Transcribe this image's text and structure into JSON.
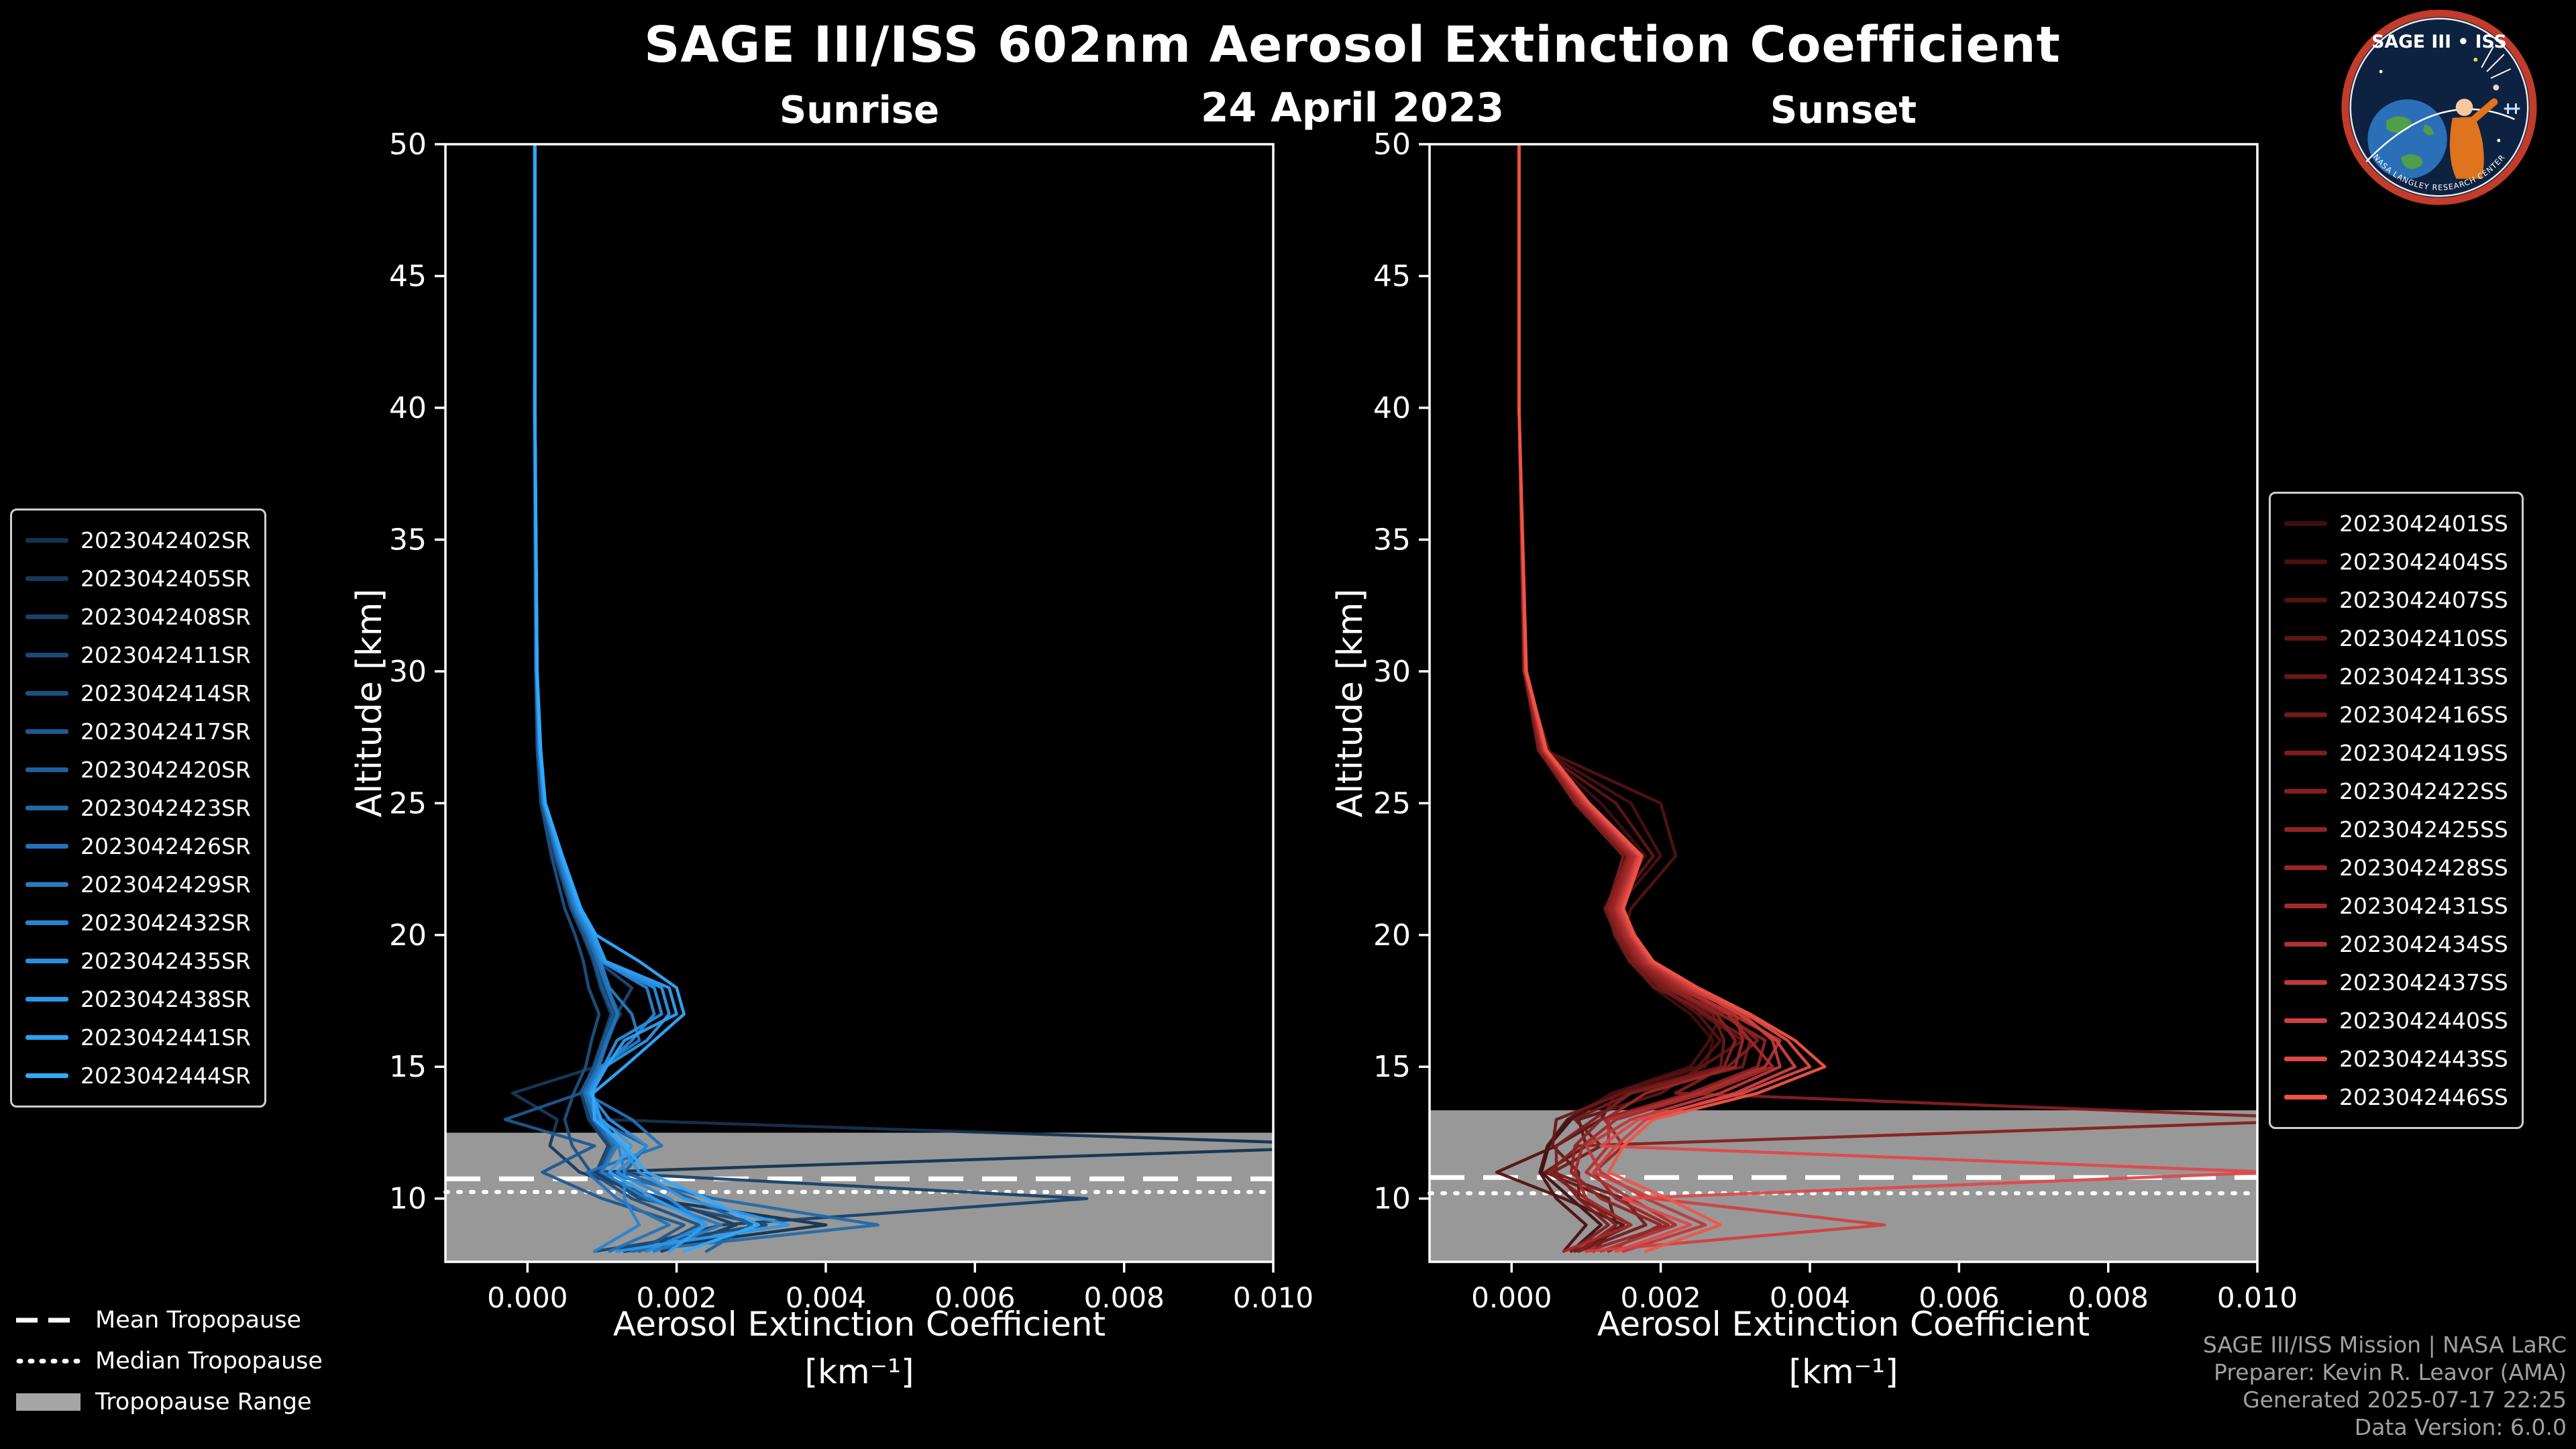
{
  "header": {
    "title": "SAGE III/ISS 602nm Aerosol Extinction Coefficient",
    "date": "24 April 2023"
  },
  "logo": {
    "title": "SAGE III • ISS",
    "subtitle": "NASA LANGLEY RESEARCH CENTER"
  },
  "tropopause_legend": {
    "mean": "Mean Tropopause",
    "median": "Median Tropopause",
    "range": "Tropopause Range"
  },
  "credits": {
    "lines": [
      "SAGE III/ISS Mission | NASA LaRC",
      "Preparer: Kevin R. Leavor (AMA)",
      "Generated 2025-07-17 22:25",
      "Data Version: 6.0.0"
    ]
  },
  "chart_data": [
    {
      "type": "line",
      "title": "Sunrise",
      "xlabel": "Aerosol Extinction Coefficient",
      "xlabel_units": "[km⁻¹]",
      "ylabel": "Altitude [km]",
      "xlim": [
        -0.0011,
        0.01
      ],
      "ylim": [
        7.6,
        50
      ],
      "xticks": [
        0.0,
        0.002,
        0.004,
        0.006,
        0.008,
        0.01
      ],
      "xtick_labels": [
        "0.000",
        "0.002",
        "0.004",
        "0.006",
        "0.008",
        "0.010"
      ],
      "yticks": [
        10,
        15,
        20,
        25,
        30,
        35,
        40,
        45,
        50
      ],
      "grid": false,
      "legend_position": "outside-left",
      "tropopause": {
        "mean": 10.75,
        "median": 10.25,
        "range_top": 12.5,
        "range_bottom": 7.6
      },
      "altitudes": [
        50,
        40,
        30,
        27,
        25,
        23,
        21,
        20,
        19,
        18,
        17,
        16,
        15,
        14,
        13,
        12,
        11,
        10,
        9,
        8
      ],
      "series": [
        {
          "name": "2023042402SR",
          "color": "#14334f",
          "values": [
            0.0001,
            0.0001,
            0.00012,
            0.00016,
            0.00022,
            0.0004,
            0.00065,
            0.0008,
            0.00095,
            0.00105,
            0.00125,
            0.001,
            0.0009,
            0.0007,
            0.001,
            0.0115,
            0.0009,
            0.0016,
            0.004,
            0.0013
          ]
        },
        {
          "name": "2023042405SR",
          "color": "#163a5c",
          "values": [
            0.0001,
            0.0001,
            0.00011,
            0.00014,
            0.0002,
            0.00038,
            0.0006,
            0.00078,
            0.00092,
            0.00102,
            0.00118,
            0.00104,
            0.00092,
            -0.0002,
            0.0004,
            0.0003,
            0.0007,
            0.0018,
            0.0028,
            0.0018
          ]
        },
        {
          "name": "2023042408SR",
          "color": "#184169",
          "values": [
            9e-05,
            0.0001,
            0.00011,
            0.00015,
            0.00019,
            0.00036,
            0.00058,
            0.00074,
            0.00088,
            0.00098,
            0.00112,
            0.001,
            0.00088,
            0.00072,
            0.00082,
            0.00108,
            0.00092,
            0.0075,
            0.0026,
            0.0012
          ]
        },
        {
          "name": "2023042411SR",
          "color": "#1a4976",
          "values": [
            0.0001,
            0.0001,
            0.00012,
            0.00015,
            0.00021,
            0.0004,
            0.00062,
            0.0008,
            0.00094,
            0.0014,
            0.0012,
            0.00106,
            0.00094,
            0.00076,
            0.00086,
            0.00112,
            0.00096,
            0.0015,
            0.0032,
            0.0009
          ]
        },
        {
          "name": "2023042414SR",
          "color": "#1c5183",
          "values": [
            0.0001,
            9e-05,
            0.00011,
            0.00013,
            0.00018,
            0.00032,
            0.0005,
            0.00064,
            0.00075,
            0.00082,
            0.00096,
            0.00086,
            0.00078,
            0.00062,
            0.0005,
            0.0006,
            0.00085,
            0.0014,
            0.0023,
            0.0016
          ]
        },
        {
          "name": "2023042417SR",
          "color": "#1e5990",
          "values": [
            0.0001,
            0.0001,
            0.00012,
            0.00015,
            0.0002,
            0.00038,
            0.0006,
            0.00076,
            0.0009,
            0.001,
            0.00115,
            0.00102,
            0.0009,
            0.00072,
            -0.0003,
            0.0009,
            0.0002,
            0.001,
            0.0021,
            0.0015
          ]
        },
        {
          "name": "2023042420SR",
          "color": "#20619d",
          "values": [
            0.0001,
            0.0001,
            0.00012,
            0.00016,
            0.00022,
            0.00042,
            0.00064,
            0.00082,
            0.00096,
            0.00108,
            0.00122,
            0.00108,
            0.00096,
            0.00078,
            0.00092,
            0.0016,
            0.0013,
            0.0022,
            0.003,
            0.0024
          ]
        },
        {
          "name": "2023042423SR",
          "color": "#226aaa",
          "values": [
            0.0001,
            0.0001,
            0.00012,
            0.00015,
            0.00021,
            0.0004,
            0.00062,
            0.0008,
            0.00094,
            0.00106,
            0.0012,
            0.00106,
            0.00094,
            0.00076,
            0.00088,
            0.00115,
            0.00098,
            0.0025,
            0.0047,
            0.0014
          ]
        },
        {
          "name": "2023042426SR",
          "color": "#2472b7",
          "values": [
            0.0001,
            0.0001,
            0.00012,
            0.00015,
            0.00021,
            0.0004,
            0.00063,
            0.00081,
            0.00095,
            0.00107,
            0.00121,
            0.00107,
            0.00095,
            0.00077,
            0.0014,
            0.0018,
            0.0008,
            0.0012,
            0.0019,
            0.0011
          ]
        },
        {
          "name": "2023042429SR",
          "color": "#267bc4",
          "values": [
            0.0001,
            0.0001,
            0.00012,
            0.00016,
            0.00022,
            0.00042,
            0.00065,
            0.00083,
            0.00098,
            0.0011,
            0.0014,
            0.0015,
            0.00098,
            0.0008,
            0.00092,
            0.0012,
            0.001,
            0.0016,
            0.0026,
            0.0017
          ]
        },
        {
          "name": "2023042432SR",
          "color": "#2884d1",
          "values": [
            0.0001,
            0.0001,
            0.00012,
            0.00016,
            0.00022,
            0.00043,
            0.00066,
            0.00084,
            0.00099,
            0.0016,
            0.0017,
            0.0014,
            0.001,
            0.00081,
            0.00094,
            0.00122,
            0.0013,
            0.0013,
            0.0015,
            0.0009
          ]
        },
        {
          "name": "2023042435SR",
          "color": "#2a8dde",
          "values": [
            0.0001,
            0.0001,
            0.00013,
            0.00017,
            0.00023,
            0.00044,
            0.00068,
            0.00086,
            0.00101,
            0.0017,
            0.0018,
            0.0012,
            0.00102,
            0.00083,
            0.0011,
            0.0016,
            0.0012,
            0.0019,
            0.0024,
            0.0016
          ]
        },
        {
          "name": "2023042438SR",
          "color": "#2c96e8",
          "values": [
            0.0001,
            0.0001,
            0.00013,
            0.00017,
            0.00023,
            0.00045,
            0.00069,
            0.00088,
            0.00103,
            0.0018,
            0.0019,
            0.0016,
            0.00104,
            0.00085,
            0.00097,
            0.00126,
            0.0015,
            0.0021,
            0.0035,
            0.0012
          ]
        },
        {
          "name": "2023042441SR",
          "color": "#2ea0f2",
          "values": [
            0.0001,
            0.0001,
            0.00013,
            0.00017,
            0.00024,
            0.00046,
            0.0007,
            0.0009,
            0.00105,
            0.0019,
            0.002,
            0.0013,
            0.00106,
            0.00086,
            0.00099,
            0.0014,
            0.0011,
            0.0017,
            0.0024,
            0.0019
          ]
        },
        {
          "name": "2023042444SR",
          "color": "#30aaff",
          "values": [
            0.0001,
            0.0001,
            0.00013,
            0.00018,
            0.00024,
            0.00047,
            0.00072,
            0.00092,
            0.0015,
            0.002,
            0.0021,
            0.0017,
            0.0013,
            0.00088,
            0.0009,
            0.0013,
            0.0016,
            0.0024,
            0.0031,
            0.0021
          ]
        }
      ]
    },
    {
      "type": "line",
      "title": "Sunset",
      "xlabel": "Aerosol Extinction Coefficient",
      "xlabel_units": "[km⁻¹]",
      "ylabel": "Altitude [km]",
      "xlim": [
        -0.0011,
        0.01
      ],
      "ylim": [
        7.6,
        50
      ],
      "xticks": [
        0.0,
        0.002,
        0.004,
        0.006,
        0.008,
        0.01
      ],
      "xtick_labels": [
        "0.000",
        "0.002",
        "0.004",
        "0.006",
        "0.008",
        "0.010"
      ],
      "yticks": [
        10,
        15,
        20,
        25,
        30,
        35,
        40,
        45,
        50
      ],
      "grid": false,
      "legend_position": "outside-right",
      "tropopause": {
        "mean": 10.8,
        "median": 10.2,
        "range_top": 13.35,
        "range_bottom": 7.6
      },
      "altitudes": [
        50,
        40,
        30,
        27,
        25,
        23,
        21,
        20,
        19,
        18,
        17,
        16,
        15,
        14,
        13,
        12,
        11,
        10,
        9,
        8
      ],
      "series": [
        {
          "name": "2023042401SS",
          "color": "#400d0d",
          "values": [
            0.0001,
            0.0001,
            0.00018,
            0.0004,
            0.0012,
            0.0018,
            0.0013,
            0.0014,
            0.0016,
            0.0019,
            0.0024,
            0.0027,
            0.0026,
            0.0014,
            0.0008,
            0.0005,
            0.0004,
            0.0008,
            0.0012,
            0.0008
          ]
        },
        {
          "name": "2023042404SS",
          "color": "#4a1010",
          "values": [
            0.0001,
            0.0001,
            0.00017,
            0.00042,
            0.0016,
            0.002,
            0.0014,
            0.00145,
            0.00165,
            0.00195,
            0.0028,
            0.00265,
            0.0024,
            0.00135,
            0.00075,
            0.00048,
            0.00038,
            0.0006,
            0.001,
            0.0007
          ]
        },
        {
          "name": "2023042407SS",
          "color": "#541212",
          "values": [
            0.0001,
            0.0001,
            0.00018,
            0.00045,
            0.002,
            0.0022,
            0.0016,
            0.0015,
            0.0017,
            0.002,
            0.0025,
            0.0028,
            0.0025,
            0.0014,
            0.0012,
            0.0006,
            -0.0002,
            0.0007,
            0.0015,
            0.0009
          ]
        },
        {
          "name": "2023042410SS",
          "color": "#5e1515",
          "values": [
            0.0001,
            0.0001,
            0.00017,
            0.00038,
            0.0014,
            0.0019,
            0.00135,
            0.00142,
            0.00162,
            0.0022,
            0.00255,
            0.0031,
            0.00255,
            0.002,
            0.0009,
            0.001,
            0.00045,
            0.0013,
            0.0014,
            0.0011
          ]
        },
        {
          "name": "2023042413SS",
          "color": "#681818",
          "values": [
            0.0001,
            0.0001,
            0.00016,
            0.0005,
            0.001,
            0.0017,
            0.0013,
            0.00138,
            0.00158,
            0.00192,
            0.0027,
            0.00285,
            0.0028,
            0.0015,
            0.0006,
            0.00055,
            0.0009,
            0.0009,
            0.0016,
            0.00085
          ]
        },
        {
          "name": "2023042416SS",
          "color": "#721a1a",
          "values": [
            0.0001,
            0.0001,
            0.00017,
            0.00036,
            0.0009,
            0.0016,
            0.00125,
            0.0014,
            0.0016,
            0.002,
            0.0026,
            0.0032,
            0.0031,
            0.0016,
            0.00085,
            0.0012,
            0.00055,
            0.0015,
            0.0018,
            0.0009
          ]
        },
        {
          "name": "2023042419SS",
          "color": "#7c1d1d",
          "values": [
            0.0001,
            0.0001,
            0.00017,
            0.00037,
            0.00085,
            0.0015,
            0.00128,
            0.00142,
            0.00165,
            0.00205,
            0.0029,
            0.0033,
            0.0029,
            0.0016,
            0.0011,
            0.0006,
            0.0006,
            0.0009,
            0.0013,
            0.0008
          ]
        },
        {
          "name": "2023042422SS",
          "color": "#862020",
          "values": [
            0.0001,
            0.0001,
            0.00018,
            0.00039,
            0.00088,
            0.00155,
            0.0013,
            0.00145,
            0.00168,
            0.0021,
            0.00275,
            0.003,
            0.00285,
            0.0022,
            0.0112,
            0.0009,
            0.0005,
            0.001,
            0.0014,
            0.0009
          ]
        },
        {
          "name": "2023042425SS",
          "color": "#902323",
          "values": [
            0.0001,
            0.0001,
            0.00018,
            0.0004,
            0.0009,
            0.00158,
            0.00132,
            0.00148,
            0.0017,
            0.00215,
            0.0028,
            0.0034,
            0.0033,
            0.0024,
            0.0012,
            0.00085,
            0.0008,
            0.0012,
            0.002,
            0.0013
          ]
        },
        {
          "name": "2023042428SS",
          "color": "#9a2626",
          "values": [
            0.0001,
            0.0001,
            0.00018,
            0.00041,
            0.00092,
            0.0016,
            0.00135,
            0.0015,
            0.00172,
            0.0022,
            0.003,
            0.0031,
            0.003,
            0.0018,
            0.00125,
            0.0015,
            0.0011,
            0.0014,
            0.0021,
            0.001
          ]
        },
        {
          "name": "2023042431SS",
          "color": "#a42929",
          "values": [
            0.0001,
            0.0001,
            0.00018,
            0.00042,
            0.00094,
            0.00162,
            0.00138,
            0.00152,
            0.00175,
            0.00225,
            0.0029,
            0.0032,
            0.0035,
            0.0026,
            0.0014,
            0.00095,
            0.00085,
            0.001,
            0.0016,
            0.0007
          ]
        },
        {
          "name": "2023042434SS",
          "color": "#b03030",
          "values": [
            0.0001,
            0.0001,
            0.00019,
            0.00043,
            0.00096,
            0.00165,
            0.0014,
            0.00155,
            0.00178,
            0.0023,
            0.00295,
            0.0036,
            0.0034,
            0.0025,
            0.0013,
            0.0013,
            0.001,
            0.0016,
            0.0022,
            0.0012
          ]
        },
        {
          "name": "2023042437SS",
          "color": "#c03838",
          "values": [
            0.0001,
            0.0001,
            0.00019,
            0.00044,
            0.00098,
            0.00168,
            0.00142,
            0.00158,
            0.00182,
            0.00235,
            0.0031,
            0.0035,
            0.0036,
            0.0028,
            0.0016,
            0.001,
            0.0012,
            0.0018,
            0.0026,
            0.0015
          ]
        },
        {
          "name": "2023042440SS",
          "color": "#d04040",
          "values": [
            0.0001,
            0.0001,
            0.00019,
            0.00045,
            0.001,
            0.0017,
            0.00145,
            0.0016,
            0.00185,
            0.0024,
            0.00305,
            0.00355,
            0.0038,
            0.003,
            0.0018,
            0.0014,
            0.0011,
            0.0019,
            0.005,
            0.001
          ]
        },
        {
          "name": "2023042443SS",
          "color": "#e04848",
          "values": [
            0.0001,
            0.0001,
            0.00019,
            0.00046,
            0.00102,
            0.00172,
            0.00148,
            0.00162,
            0.00188,
            0.00245,
            0.00315,
            0.0037,
            0.004,
            0.0031,
            0.0017,
            0.0012,
            0.0102,
            0.0015,
            0.0024,
            0.0014
          ]
        },
        {
          "name": "2023042446SS",
          "color": "#f05545",
          "values": [
            0.0001,
            0.0001,
            0.0002,
            0.00047,
            0.00104,
            0.00175,
            0.0015,
            0.00165,
            0.0019,
            0.0025,
            0.0032,
            0.0038,
            0.0042,
            0.0033,
            0.0019,
            0.0015,
            0.0013,
            0.0021,
            0.0028,
            0.0018
          ]
        }
      ]
    }
  ]
}
